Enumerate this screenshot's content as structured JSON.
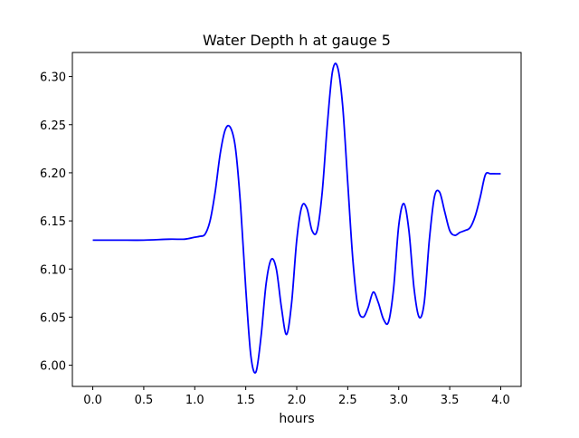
{
  "chart_data": {
    "type": "line",
    "title": "Water Depth h at gauge 5",
    "xlabel": "hours",
    "ylabel": "",
    "xlim": [
      -0.2,
      4.2
    ],
    "ylim": [
      5.978,
      6.325
    ],
    "xticks": [
      0.0,
      0.5,
      1.0,
      1.5,
      2.0,
      2.5,
      3.0,
      3.5,
      4.0
    ],
    "xtick_labels": [
      "0.0",
      "0.5",
      "1.0",
      "1.5",
      "2.0",
      "2.5",
      "3.0",
      "3.5",
      "4.0"
    ],
    "yticks": [
      6.0,
      6.05,
      6.1,
      6.15,
      6.2,
      6.25,
      6.3
    ],
    "ytick_labels": [
      "6.00",
      "6.05",
      "6.10",
      "6.15",
      "6.20",
      "6.25",
      "6.30"
    ],
    "grid": false,
    "series": [
      {
        "color": "#0000ff",
        "x": [
          0.0,
          0.25,
          0.5,
          0.75,
          0.9,
          1.0,
          1.05,
          1.1,
          1.15,
          1.2,
          1.25,
          1.3,
          1.35,
          1.4,
          1.45,
          1.5,
          1.55,
          1.6,
          1.65,
          1.7,
          1.75,
          1.8,
          1.85,
          1.9,
          1.95,
          2.0,
          2.05,
          2.1,
          2.15,
          2.2,
          2.25,
          2.3,
          2.35,
          2.4,
          2.45,
          2.5,
          2.55,
          2.6,
          2.65,
          2.7,
          2.75,
          2.8,
          2.85,
          2.9,
          2.95,
          3.0,
          3.05,
          3.1,
          3.15,
          3.2,
          3.25,
          3.3,
          3.35,
          3.4,
          3.45,
          3.5,
          3.55,
          3.6,
          3.65,
          3.7,
          3.75,
          3.8,
          3.85,
          3.9,
          3.95,
          4.0
        ],
        "y": [
          6.13,
          6.13,
          6.13,
          6.131,
          6.131,
          6.133,
          6.134,
          6.136,
          6.15,
          6.18,
          6.22,
          6.245,
          6.247,
          6.225,
          6.165,
          6.08,
          6.01,
          5.993,
          6.03,
          6.085,
          6.11,
          6.1,
          6.06,
          6.032,
          6.065,
          6.13,
          6.165,
          6.163,
          6.14,
          6.14,
          6.18,
          6.25,
          6.305,
          6.31,
          6.27,
          6.19,
          6.11,
          6.06,
          6.05,
          6.06,
          6.076,
          6.065,
          6.048,
          6.045,
          6.08,
          6.145,
          6.168,
          6.14,
          6.08,
          6.05,
          6.065,
          6.13,
          6.175,
          6.18,
          6.16,
          6.14,
          6.135,
          6.138,
          6.14,
          6.143,
          6.155,
          6.175,
          6.198,
          6.199,
          6.199,
          6.199
        ]
      }
    ]
  }
}
